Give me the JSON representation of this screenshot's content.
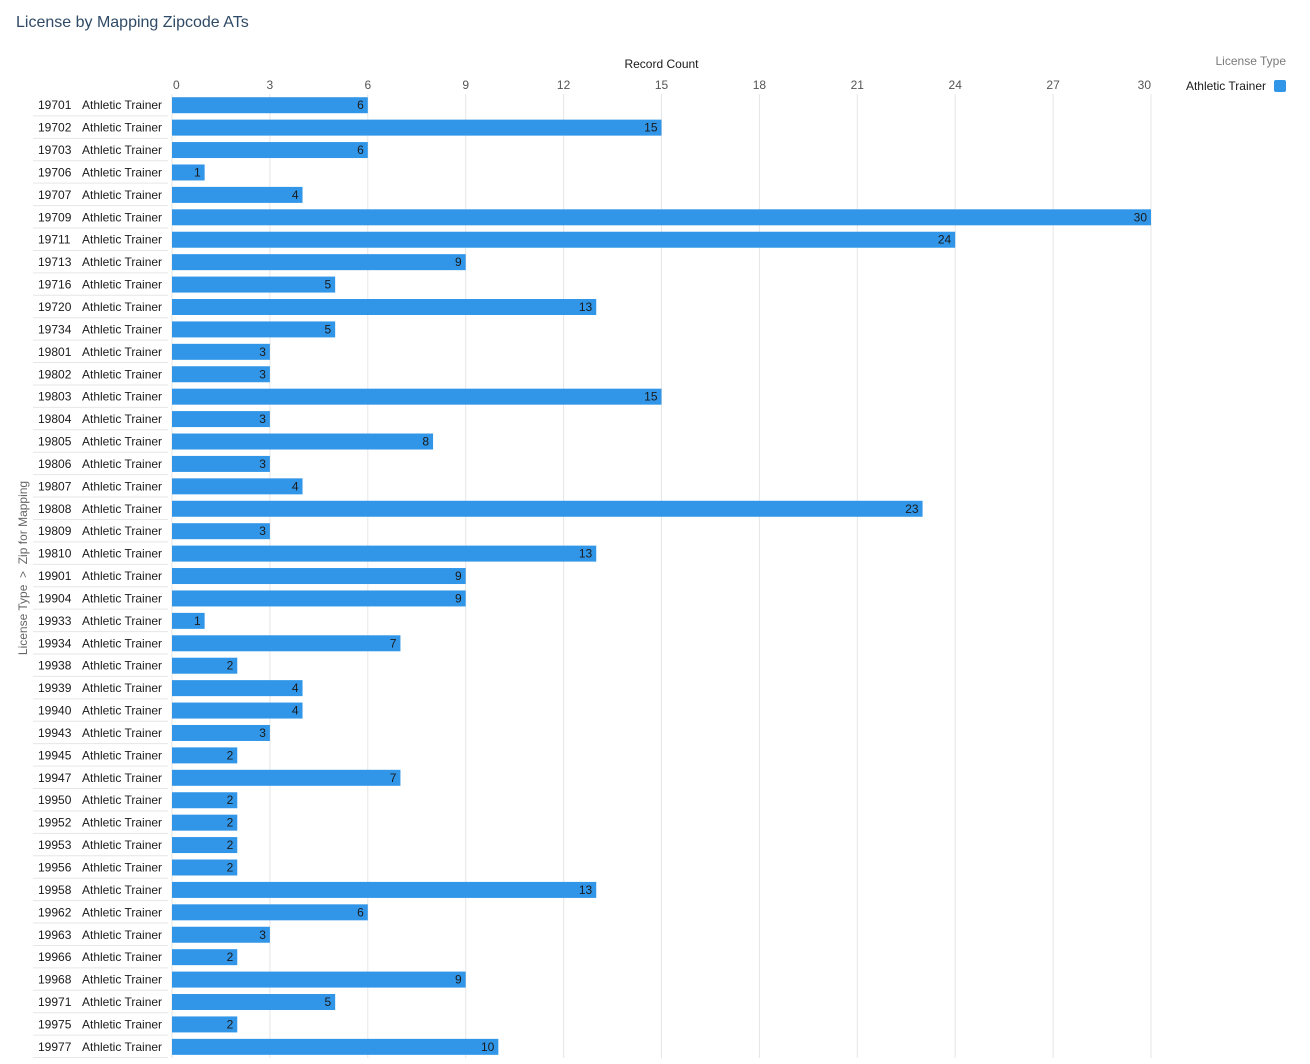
{
  "title": "License by Mapping Zipcode ATs",
  "legend": {
    "title": "License Type",
    "items": [
      {
        "label": "Athletic Trainer",
        "color": "#3196e8"
      }
    ]
  },
  "chart_data": {
    "type": "bar",
    "orientation": "horizontal",
    "xlabel": "Record Count",
    "ylabel": "License Type  >  Zip for Mapping",
    "xlim": [
      0,
      30
    ],
    "x_ticks": [
      0,
      3,
      6,
      9,
      12,
      15,
      18,
      21,
      24,
      27,
      30
    ],
    "grid": true,
    "legend_position": "top-right",
    "bar_color": "#3196e8",
    "category_group": "Athletic Trainer",
    "categories": [
      "19701",
      "19702",
      "19703",
      "19706",
      "19707",
      "19709",
      "19711",
      "19713",
      "19716",
      "19720",
      "19734",
      "19801",
      "19802",
      "19803",
      "19804",
      "19805",
      "19806",
      "19807",
      "19808",
      "19809",
      "19810",
      "19901",
      "19904",
      "19933",
      "19934",
      "19938",
      "19939",
      "19940",
      "19943",
      "19945",
      "19947",
      "19950",
      "19952",
      "19953",
      "19956",
      "19958",
      "19962",
      "19963",
      "19966",
      "19968",
      "19971",
      "19975",
      "19977"
    ],
    "series": [
      {
        "name": "Athletic Trainer",
        "values": [
          6,
          15,
          6,
          1,
          4,
          30,
          24,
          9,
          5,
          13,
          5,
          3,
          3,
          15,
          3,
          8,
          3,
          4,
          23,
          3,
          13,
          9,
          9,
          1,
          7,
          2,
          4,
          4,
          3,
          2,
          7,
          2,
          2,
          2,
          2,
          13,
          6,
          3,
          2,
          9,
          5,
          2,
          10
        ]
      }
    ]
  }
}
